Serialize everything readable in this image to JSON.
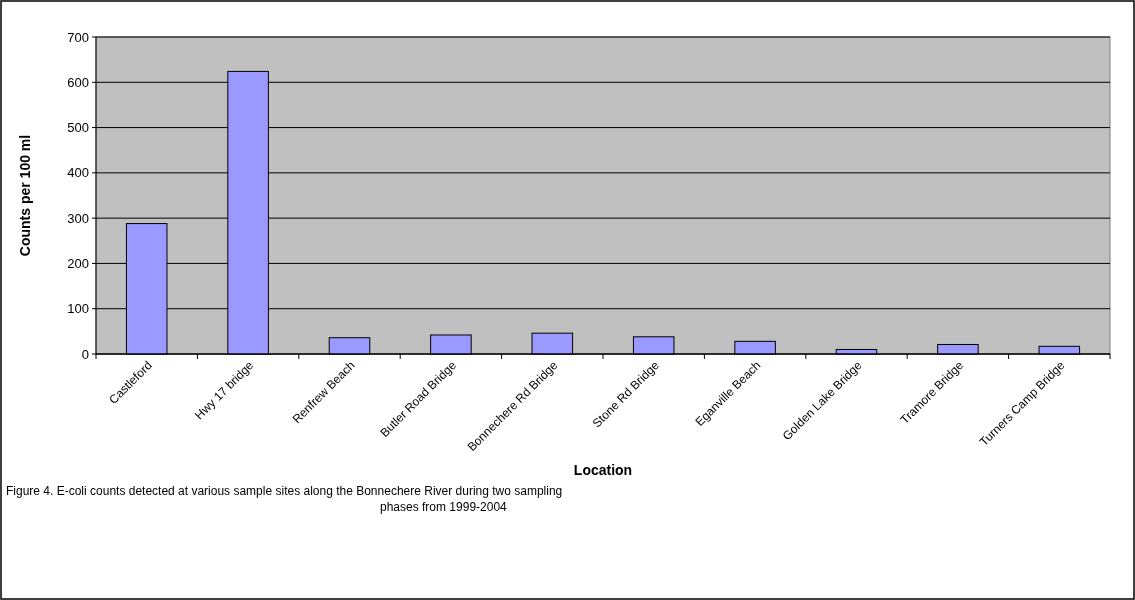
{
  "chart_data": {
    "type": "bar",
    "xlabel": "Location",
    "ylabel": "Counts per 100 ml",
    "categories": [
      "Castleford",
      "Hwy 17 bridge",
      "Renfrew Beach",
      "Butler Road Bridge",
      "Bonnechere Rd Bridge",
      "Stone Rd Bridge",
      "Eganville Beach",
      "Golden Lake Bridge",
      "Tramore Bridge",
      "Turners Camp Bridge"
    ],
    "values": [
      288,
      624,
      36,
      42,
      46,
      38,
      28,
      10,
      21,
      17
    ],
    "color": "#9999ff",
    "ylim": [
      0,
      700
    ],
    "yticks": [
      0,
      100,
      200,
      300,
      400,
      500,
      600,
      700
    ],
    "grid": "y",
    "annotations": [
      "Figure 4. E-coli counts detected at various sample sites along the Bonnechere River during two sampling phases from 1999-2004"
    ]
  }
}
